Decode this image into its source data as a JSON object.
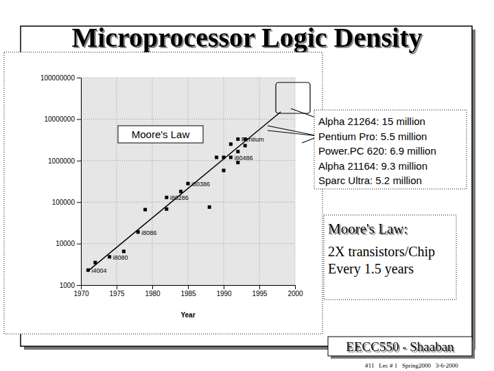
{
  "chart_data": {
    "type": "scatter",
    "title": "Microprocessor Logic Density",
    "xlabel": "Year",
    "xlim": [
      1970,
      2000
    ],
    "xticks": [
      1970,
      1975,
      1980,
      1985,
      1990,
      1995,
      2000
    ],
    "ylim": [
      1000,
      100000000
    ],
    "yticks": [
      1000,
      10000,
      100000,
      1000000,
      10000000,
      100000000
    ],
    "log": "y",
    "grid": true,
    "series": [
      {
        "name": "Moore's Law",
        "type": "line",
        "color": "#000000",
        "line_style": "solid",
        "x": [
          1971,
          1998
        ],
        "values": [
          2200,
          15000000
        ]
      },
      {
        "type": "scatter",
        "color": "#000000",
        "marker": "square",
        "x": [
          1971,
          1972,
          1974,
          1976,
          1978,
          1979,
          1982,
          1982,
          1984,
          1985,
          1988,
          1989,
          1990,
          1990,
          1991,
          1991,
          1992,
          1992,
          1992,
          1993,
          1993
        ],
        "values": [
          2300,
          3500,
          4800,
          6500,
          19000,
          66000,
          130000,
          68000,
          180000,
          280000,
          76000,
          1200000,
          1200000,
          580000,
          1200000,
          2500000,
          900000,
          1650000,
          3300000,
          3300000,
          2300000
        ],
        "labels": [
          "i4004",
          null,
          "i8080",
          null,
          "i8086",
          null,
          "i80286",
          null,
          null,
          "i80386",
          null,
          null,
          null,
          null,
          "i80486",
          null,
          null,
          null,
          "Pentium",
          null,
          null
        ]
      }
    ],
    "annotations": [
      "Alpha 21264: 15 million",
      "Pentium Pro: 5.5 million",
      "Power.PC 620: 6.9 million",
      "Alpha 21164: 9.3 million",
      "Sparc Ultra: 5.2 million"
    ]
  },
  "callout": {
    "title": "Moore's Law:",
    "lines": [
      "2X transistors/Chip",
      "Every 1.5 years"
    ]
  },
  "footer": {
    "course": "EECC550 - Shaaban",
    "info": "#11   Lec # 1   Spring2000   3-6-2000"
  }
}
